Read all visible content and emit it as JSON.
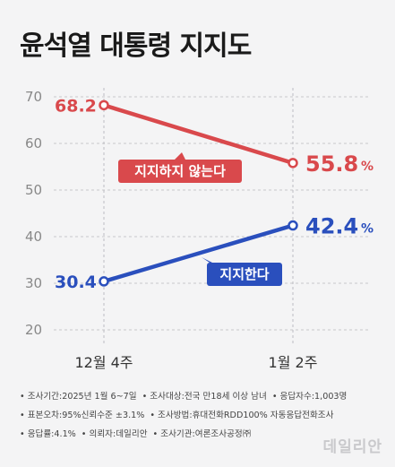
{
  "title": "윤석열 대통령 지지도",
  "chart_data": {
    "type": "line",
    "categories": [
      "12월 4주",
      "1월 2주"
    ],
    "ylim": [
      20,
      70
    ],
    "y_ticks": [
      20,
      30,
      40,
      50,
      60,
      70
    ],
    "grid": true,
    "series": [
      {
        "name": "지지하지 않는다",
        "values": [
          68.2,
          55.8
        ],
        "value_labels": [
          "68.2",
          "55.8"
        ],
        "color": "#d9494c"
      },
      {
        "name": "지지한다",
        "values": [
          30.4,
          42.4
        ],
        "value_labels": [
          "30.4",
          "42.4"
        ],
        "color": "#2a4fbd"
      }
    ],
    "unit": "%"
  },
  "footnote": {
    "rows": [
      [
        "• 조사기간:2025년 1월 6~7일",
        "• 조사대상:전국 만18세 이상 남녀",
        "• 응답자수:1,003명"
      ],
      [
        "• 표본오차:95%신뢰수준 ±3.1%",
        "• 조사방법:휴대전화RDD100% 자동응답전화조사"
      ],
      [
        "• 응답률:4.1%",
        "• 의뢰자:데일리안",
        "• 조사기관:여론조사공정㈜"
      ]
    ]
  },
  "logo": "데일리안",
  "colors": {
    "background": "#f4f4f5",
    "red": "#d9494c",
    "blue": "#2a4fbd"
  }
}
